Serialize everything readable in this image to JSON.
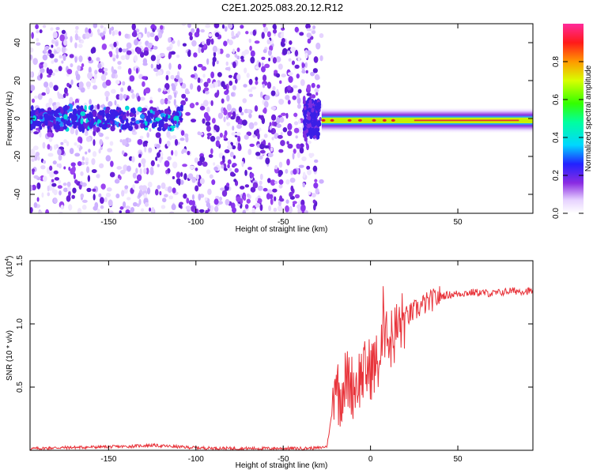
{
  "title": "C2E1.2025.083.20.12.R12",
  "chart_data": [
    {
      "type": "heatmap",
      "xlabel": "Height of straight line (km)",
      "ylabel": "Frequency (Hz)",
      "xlim": [
        -195,
        93
      ],
      "ylim": [
        -50,
        50
      ],
      "xticks": [
        -150,
        -100,
        -50,
        0,
        50
      ],
      "yticks": [
        -40,
        -20,
        0,
        20,
        40
      ],
      "colorbar": {
        "label": "Normalized spectral amplitude",
        "range": [
          0,
          1
        ],
        "ticks": [
          "0.0",
          "0.2",
          "0.4",
          "0.6",
          "0.8"
        ],
        "colormap": "white-violet-blue-cyan-green-yellow-red"
      },
      "features": [
        {
          "region": [
            -195,
            -110
          ],
          "pattern": "sparse scattered violet speckle across all frequencies; band near 0 Hz with cyan/green spots",
          "band_center_hz": 0
        },
        {
          "region": [
            -110,
            -30
          ],
          "pattern": "dense violet speckle across all frequencies",
          "band_center_hz": 0
        },
        {
          "region": [
            -30,
            93
          ],
          "pattern": "clean horizontal band at ~-1 Hz, green/yellow core with red peaks",
          "band_center_hz": -1
        }
      ]
    },
    {
      "type": "line",
      "xlabel": "Height of straight line (km)",
      "ylabel": "SNR (10 * v/v)",
      "y_scale_label": "(x10",
      "y_scale_exp": "4",
      "xlim": [
        -195,
        93
      ],
      "ylim": [
        0,
        15000
      ],
      "xticks": [
        -150,
        -100,
        -50,
        0,
        50
      ],
      "yticks": [
        "0.5",
        "1.0",
        "1.5"
      ],
      "series": [
        {
          "color": "#e8333a",
          "x": [
            -195,
            -180,
            -160,
            -140,
            -125,
            -120,
            -100,
            -80,
            -60,
            -40,
            -30,
            -25,
            -22,
            -20,
            -18,
            -15,
            -12,
            -10,
            -5,
            0,
            5,
            8,
            10,
            15,
            20,
            30,
            40,
            50,
            60,
            70,
            80,
            93
          ],
          "y": [
            120,
            200,
            250,
            300,
            400,
            350,
            200,
            150,
            150,
            150,
            180,
            300,
            3000,
            6500,
            4000,
            5500,
            5500,
            5000,
            6000,
            6500,
            7000,
            9000,
            8500,
            9500,
            10500,
            11500,
            12200,
            12400,
            12500,
            12400,
            12600,
            12600
          ]
        }
      ]
    }
  ]
}
